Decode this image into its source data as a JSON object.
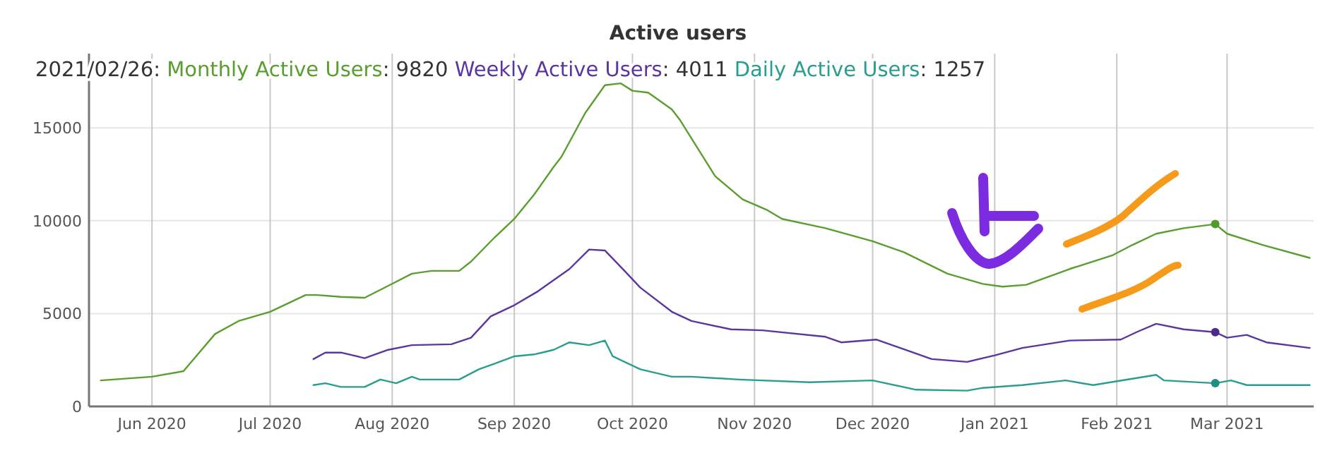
{
  "chart_data": {
    "type": "line",
    "title": "Active users",
    "annotations": [
      "2021/02/26:",
      ": 9820",
      ": 4011",
      ": 1257"
    ],
    "series": [
      {
        "name": "Monthly Active Users",
        "color": "#5a9e2f",
        "x": [
          "2020-05-19",
          "2020-06-01",
          "2020-06-09",
          "2020-06-11",
          "2020-06-17",
          "2020-06-23",
          "2020-07-01",
          "2020-07-10",
          "2020-07-13",
          "2020-07-19",
          "2020-07-25",
          "2020-07-31",
          "2020-08-06",
          "2020-08-11",
          "2020-08-18",
          "2020-08-21",
          "2020-08-27",
          "2020-09-01",
          "2020-09-06",
          "2020-09-11",
          "2020-09-13",
          "2020-09-19",
          "2020-09-24",
          "2020-09-28",
          "2020-10-01",
          "2020-10-05",
          "2020-10-11",
          "2020-10-13",
          "2020-10-22",
          "2020-10-29",
          "2020-11-04",
          "2020-11-08",
          "2020-11-19",
          "2020-12-01",
          "2020-12-09",
          "2020-12-20",
          "2020-12-29",
          "2021-01-03",
          "2021-01-09",
          "2021-01-20",
          "2021-01-31",
          "2021-02-05",
          "2021-02-11",
          "2021-02-18",
          "2021-02-26",
          "2021-03-01",
          "2021-03-10",
          "2021-03-22"
        ],
        "values": [
          1400,
          1600,
          1900,
          2400,
          3900,
          4600,
          5100,
          6000,
          6000,
          5900,
          5850,
          6500,
          7150,
          7300,
          7300,
          7800,
          9100,
          10100,
          11400,
          12900,
          13450,
          15800,
          17300,
          17400,
          17000,
          16900,
          16000,
          15450,
          12400,
          11150,
          10600,
          10100,
          9600,
          8900,
          8300,
          7150,
          6600,
          6450,
          6550,
          7400,
          8150,
          8700,
          9300,
          9600,
          9820,
          9300,
          8700,
          8000
        ]
      },
      {
        "name": "Weekly Active Users",
        "color": "#5b35a0",
        "x": [
          "2020-07-12",
          "2020-07-15",
          "2020-07-19",
          "2020-07-25",
          "2020-07-31",
          "2020-08-06",
          "2020-08-16",
          "2020-08-21",
          "2020-08-26",
          "2020-09-01",
          "2020-09-07",
          "2020-09-15",
          "2020-09-20",
          "2020-09-24",
          "2020-09-29",
          "2020-10-03",
          "2020-10-11",
          "2020-10-16",
          "2020-10-26",
          "2020-11-03",
          "2020-11-19",
          "2020-11-23",
          "2020-12-02",
          "2020-12-08",
          "2020-12-16",
          "2020-12-25",
          "2021-01-01",
          "2021-01-08",
          "2021-01-20",
          "2021-02-02",
          "2021-02-06",
          "2021-02-11",
          "2021-02-18",
          "2021-02-26",
          "2021-03-01",
          "2021-03-06",
          "2021-03-11",
          "2021-03-22"
        ],
        "values": [
          2550,
          2900,
          2900,
          2600,
          3050,
          3300,
          3350,
          3700,
          4850,
          5450,
          6200,
          7400,
          8450,
          8400,
          7300,
          6400,
          5100,
          4600,
          4150,
          4100,
          3750,
          3450,
          3600,
          3150,
          2550,
          2400,
          2750,
          3150,
          3550,
          3600,
          4000,
          4450,
          4150,
          4000,
          3700,
          3850,
          3450,
          3150
        ]
      },
      {
        "name": "Daily Active Users",
        "color": "#2a9d8f",
        "x": [
          "2020-07-12",
          "2020-07-15",
          "2020-07-19",
          "2020-07-25",
          "2020-07-29",
          "2020-08-02",
          "2020-08-06",
          "2020-08-08",
          "2020-08-18",
          "2020-08-23",
          "2020-08-27",
          "2020-09-01",
          "2020-09-06",
          "2020-09-11",
          "2020-09-15",
          "2020-09-20",
          "2020-09-24",
          "2020-09-26",
          "2020-10-03",
          "2020-10-11",
          "2020-10-16",
          "2020-10-28",
          "2020-11-15",
          "2020-12-01",
          "2020-12-12",
          "2020-12-25",
          "2020-12-29",
          "2021-01-08",
          "2021-01-19",
          "2021-01-26",
          "2021-02-11",
          "2021-02-13",
          "2021-02-26",
          "2021-03-02",
          "2021-03-06",
          "2021-03-22"
        ],
        "values": [
          1150,
          1250,
          1050,
          1050,
          1450,
          1250,
          1600,
          1450,
          1450,
          2000,
          2300,
          2700,
          2800,
          3050,
          3450,
          3300,
          3550,
          2700,
          2000,
          1600,
          1600,
          1450,
          1300,
          1400,
          900,
          850,
          1000,
          1150,
          1400,
          1150,
          1700,
          1400,
          1250,
          1400,
          1150,
          1150
        ]
      },
      {
        "type": "scatter",
        "color": "#4e9a2a",
        "x": [
          "2021-02-26"
        ],
        "values": [
          9820
        ]
      },
      {
        "type": "scatter",
        "color": "#4b2a8e",
        "x": [
          "2021-02-26"
        ],
        "values": [
          4000
        ]
      },
      {
        "type": "scatter",
        "color": "#1f8f80",
        "x": [
          "2021-02-26"
        ],
        "values": [
          1250
        ]
      }
    ],
    "xlim": [
      "2020-05-16",
      "2021-03-23"
    ],
    "ylim": [
      0,
      19000
    ],
    "xticks": [
      {
        "value": "2020-06-01",
        "label": "Jun 2020"
      },
      {
        "value": "2020-07-01",
        "label": "Jul 2020"
      },
      {
        "value": "2020-08-01",
        "label": "Aug 2020"
      },
      {
        "value": "2020-09-01",
        "label": "Sep 2020"
      },
      {
        "value": "2020-10-01",
        "label": "Oct 2020"
      },
      {
        "value": "2020-11-01",
        "label": "Nov 2020"
      },
      {
        "value": "2020-12-01",
        "label": "Dec 2020"
      },
      {
        "value": "2021-01-01",
        "label": "Jan 2021"
      },
      {
        "value": "2021-02-01",
        "label": "Feb 2021"
      },
      {
        "value": "2021-03-01",
        "label": "Mar 2021"
      }
    ],
    "yticks": [
      0,
      5000,
      10000,
      15000
    ],
    "grid": true,
    "legend": "top left"
  }
}
